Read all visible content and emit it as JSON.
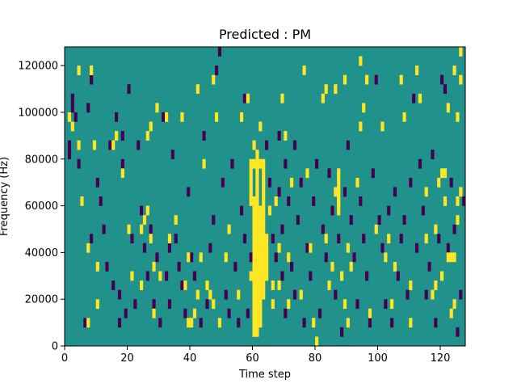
{
  "chart_data": {
    "type": "heatmap",
    "title": "Predicted : PM",
    "xlabel": "Time step",
    "ylabel": "Frequency (Hz)",
    "xlim": [
      0,
      128
    ],
    "ylim": [
      0,
      128000
    ],
    "xticks": [
      0,
      20,
      40,
      60,
      80,
      100,
      120
    ],
    "yticks": [
      0,
      20000,
      40000,
      60000,
      80000,
      100000,
      120000
    ],
    "ytick_labels": [
      "0",
      "20000",
      "40000",
      "60000",
      "80000",
      "100000",
      "120000"
    ],
    "grid": false,
    "colormap": "viridis",
    "levels": [
      {
        "value": -1,
        "color": "#440154"
      },
      {
        "value": 0,
        "color": "#21918c"
      },
      {
        "value": 1,
        "color": "#fde725"
      }
    ],
    "background_value": 0,
    "cell_height_hz": 4000,
    "cells_yellow": [
      [
        1,
        96000
      ],
      [
        2,
        92000
      ],
      [
        4,
        84000
      ],
      [
        4,
        116000
      ],
      [
        5,
        60000
      ],
      [
        7,
        40000
      ],
      [
        7,
        8000
      ],
      [
        8,
        116000
      ],
      [
        9,
        84000
      ],
      [
        10,
        32000
      ],
      [
        10,
        16000
      ],
      [
        15,
        84000
      ],
      [
        16,
        88000
      ],
      [
        18,
        72000
      ],
      [
        20,
        48000
      ],
      [
        21,
        28000
      ],
      [
        24,
        24000
      ],
      [
        24,
        48000
      ],
      [
        25,
        52000
      ],
      [
        26,
        56000
      ],
      [
        26,
        88000
      ],
      [
        27,
        92000
      ],
      [
        27,
        44000
      ],
      [
        28,
        32000
      ],
      [
        28,
        12000
      ],
      [
        29,
        100000
      ],
      [
        30,
        28000
      ],
      [
        32,
        96000
      ],
      [
        33,
        44000
      ],
      [
        35,
        52000
      ],
      [
        37,
        96000
      ],
      [
        38,
        24000
      ],
      [
        39,
        8000
      ],
      [
        39,
        36000
      ],
      [
        40,
        8000
      ],
      [
        41,
        12000
      ],
      [
        42,
        108000
      ],
      [
        42,
        20000
      ],
      [
        43,
        36000
      ],
      [
        44,
        76000
      ],
      [
        45,
        24000
      ],
      [
        46,
        20000
      ],
      [
        47,
        112000
      ],
      [
        47,
        16000
      ],
      [
        48,
        96000
      ],
      [
        49,
        8000
      ],
      [
        51,
        36000
      ],
      [
        52,
        48000
      ],
      [
        55,
        20000
      ],
      [
        56,
        96000
      ],
      [
        58,
        104000
      ],
      [
        59,
        28000
      ],
      [
        60,
        84000
      ],
      [
        60,
        76000
      ],
      [
        61,
        36000
      ],
      [
        61,
        24000
      ],
      [
        62,
        92000
      ],
      [
        62,
        76000
      ],
      [
        65,
        56000
      ],
      [
        66,
        16000
      ],
      [
        66,
        24000
      ],
      [
        67,
        60000
      ],
      [
        68,
        24000
      ],
      [
        68,
        40000
      ],
      [
        69,
        104000
      ],
      [
        70,
        88000
      ],
      [
        71,
        36000
      ],
      [
        71,
        16000
      ],
      [
        72,
        68000
      ],
      [
        75,
        20000
      ],
      [
        76,
        116000
      ],
      [
        77,
        72000
      ],
      [
        78,
        40000
      ],
      [
        79,
        8000
      ],
      [
        80,
        0
      ],
      [
        82,
        104000
      ],
      [
        83,
        44000
      ],
      [
        83,
        108000
      ],
      [
        84,
        24000
      ],
      [
        85,
        32000
      ],
      [
        86,
        108000
      ],
      [
        86,
        64000
      ],
      [
        87,
        60000
      ],
      [
        88,
        28000
      ],
      [
        89,
        16000
      ],
      [
        89,
        112000
      ],
      [
        90,
        40000
      ],
      [
        90,
        8000
      ],
      [
        91,
        32000
      ],
      [
        93,
        68000
      ],
      [
        94,
        92000
      ],
      [
        94,
        120000
      ],
      [
        95,
        100000
      ],
      [
        96,
        112000
      ],
      [
        97,
        12000
      ],
      [
        99,
        48000
      ],
      [
        101,
        92000
      ],
      [
        102,
        36000
      ],
      [
        103,
        44000
      ],
      [
        104,
        16000
      ],
      [
        105,
        32000
      ],
      [
        107,
        112000
      ],
      [
        108,
        96000
      ],
      [
        110,
        24000
      ],
      [
        110,
        8000
      ],
      [
        112,
        116000
      ],
      [
        113,
        104000
      ],
      [
        115,
        44000
      ],
      [
        115,
        64000
      ],
      [
        117,
        20000
      ],
      [
        118,
        48000
      ],
      [
        118,
        24000
      ],
      [
        119,
        68000
      ],
      [
        120,
        72000
      ],
      [
        120,
        28000
      ],
      [
        121,
        60000
      ],
      [
        121,
        72000
      ],
      [
        122,
        36000
      ],
      [
        122,
        100000
      ],
      [
        123,
        36000
      ],
      [
        123,
        12000
      ],
      [
        124,
        36000
      ],
      [
        124,
        16000
      ],
      [
        124,
        116000
      ],
      [
        125,
        96000
      ],
      [
        125,
        60000
      ],
      [
        125,
        52000
      ],
      [
        126,
        64000
      ],
      [
        126,
        112000
      ],
      [
        126,
        124000
      ]
    ],
    "cells_yellow_columns": [
      {
        "x": 59,
        "y_from": 60000,
        "y_to": 80000
      },
      {
        "x": 60,
        "y_from": 4000,
        "y_to": 64000
      },
      {
        "x": 61,
        "y_from": 4000,
        "y_to": 84000
      },
      {
        "x": 62,
        "y_from": 8000,
        "y_to": 60000
      },
      {
        "x": 63,
        "y_from": 20000,
        "y_to": 80000
      },
      {
        "x": 64,
        "y_from": 28000,
        "y_to": 48000
      },
      {
        "x": 87,
        "y_from": 56000,
        "y_to": 76000
      }
    ],
    "cells_purple": [
      [
        1,
        80000
      ],
      [
        1,
        84000
      ],
      [
        2,
        100000
      ],
      [
        2,
        104000
      ],
      [
        3,
        96000
      ],
      [
        4,
        76000
      ],
      [
        6,
        8000
      ],
      [
        7,
        100000
      ],
      [
        8,
        44000
      ],
      [
        8,
        112000
      ],
      [
        10,
        68000
      ],
      [
        11,
        60000
      ],
      [
        12,
        48000
      ],
      [
        13,
        32000
      ],
      [
        14,
        84000
      ],
      [
        15,
        24000
      ],
      [
        16,
        96000
      ],
      [
        17,
        20000
      ],
      [
        17,
        8000
      ],
      [
        18,
        76000
      ],
      [
        18,
        88000
      ],
      [
        19,
        12000
      ],
      [
        20,
        108000
      ],
      [
        21,
        44000
      ],
      [
        22,
        16000
      ],
      [
        23,
        84000
      ],
      [
        24,
        56000
      ],
      [
        25,
        40000
      ],
      [
        26,
        28000
      ],
      [
        27,
        48000
      ],
      [
        28,
        16000
      ],
      [
        29,
        36000
      ],
      [
        30,
        8000
      ],
      [
        31,
        96000
      ],
      [
        32,
        28000
      ],
      [
        33,
        40000
      ],
      [
        33,
        16000
      ],
      [
        34,
        80000
      ],
      [
        35,
        44000
      ],
      [
        36,
        32000
      ],
      [
        37,
        24000
      ],
      [
        38,
        12000
      ],
      [
        39,
        64000
      ],
      [
        40,
        36000
      ],
      [
        41,
        28000
      ],
      [
        43,
        8000
      ],
      [
        44,
        88000
      ],
      [
        45,
        16000
      ],
      [
        46,
        40000
      ],
      [
        47,
        52000
      ],
      [
        48,
        116000
      ],
      [
        49,
        124000
      ],
      [
        50,
        68000
      ],
      [
        51,
        20000
      ],
      [
        52,
        12000
      ],
      [
        53,
        76000
      ],
      [
        54,
        32000
      ],
      [
        55,
        8000
      ],
      [
        56,
        56000
      ],
      [
        57,
        44000
      ],
      [
        57,
        104000
      ],
      [
        58,
        12000
      ],
      [
        59,
        36000
      ],
      [
        60,
        20000
      ],
      [
        64,
        84000
      ],
      [
        65,
        68000
      ],
      [
        66,
        44000
      ],
      [
        67,
        36000
      ],
      [
        68,
        64000
      ],
      [
        68,
        88000
      ],
      [
        69,
        48000
      ],
      [
        69,
        28000
      ],
      [
        70,
        12000
      ],
      [
        70,
        76000
      ],
      [
        71,
        60000
      ],
      [
        72,
        32000
      ],
      [
        73,
        84000
      ],
      [
        73,
        20000
      ],
      [
        74,
        52000
      ],
      [
        75,
        68000
      ],
      [
        76,
        8000
      ],
      [
        77,
        40000
      ],
      [
        78,
        28000
      ],
      [
        79,
        60000
      ],
      [
        80,
        76000
      ],
      [
        81,
        12000
      ],
      [
        82,
        48000
      ],
      [
        83,
        36000
      ],
      [
        84,
        72000
      ],
      [
        85,
        56000
      ],
      [
        86,
        20000
      ],
      [
        87,
        44000
      ],
      [
        88,
        4000
      ],
      [
        89,
        64000
      ],
      [
        90,
        84000
      ],
      [
        91,
        52000
      ],
      [
        92,
        36000
      ],
      [
        93,
        16000
      ],
      [
        94,
        60000
      ],
      [
        95,
        44000
      ],
      [
        96,
        28000
      ],
      [
        97,
        8000
      ],
      [
        98,
        72000
      ],
      [
        99,
        112000
      ],
      [
        100,
        52000
      ],
      [
        101,
        40000
      ],
      [
        102,
        16000
      ],
      [
        103,
        56000
      ],
      [
        104,
        8000
      ],
      [
        105,
        64000
      ],
      [
        106,
        28000
      ],
      [
        107,
        44000
      ],
      [
        108,
        52000
      ],
      [
        109,
        20000
      ],
      [
        110,
        68000
      ],
      [
        111,
        104000
      ],
      [
        112,
        40000
      ],
      [
        113,
        76000
      ],
      [
        114,
        56000
      ],
      [
        115,
        20000
      ],
      [
        116,
        32000
      ],
      [
        117,
        80000
      ],
      [
        118,
        8000
      ],
      [
        119,
        44000
      ],
      [
        120,
        112000
      ],
      [
        121,
        108000
      ],
      [
        122,
        40000
      ],
      [
        123,
        68000
      ],
      [
        124,
        48000
      ],
      [
        125,
        4000
      ],
      [
        126,
        20000
      ],
      [
        127,
        60000
      ]
    ]
  }
}
